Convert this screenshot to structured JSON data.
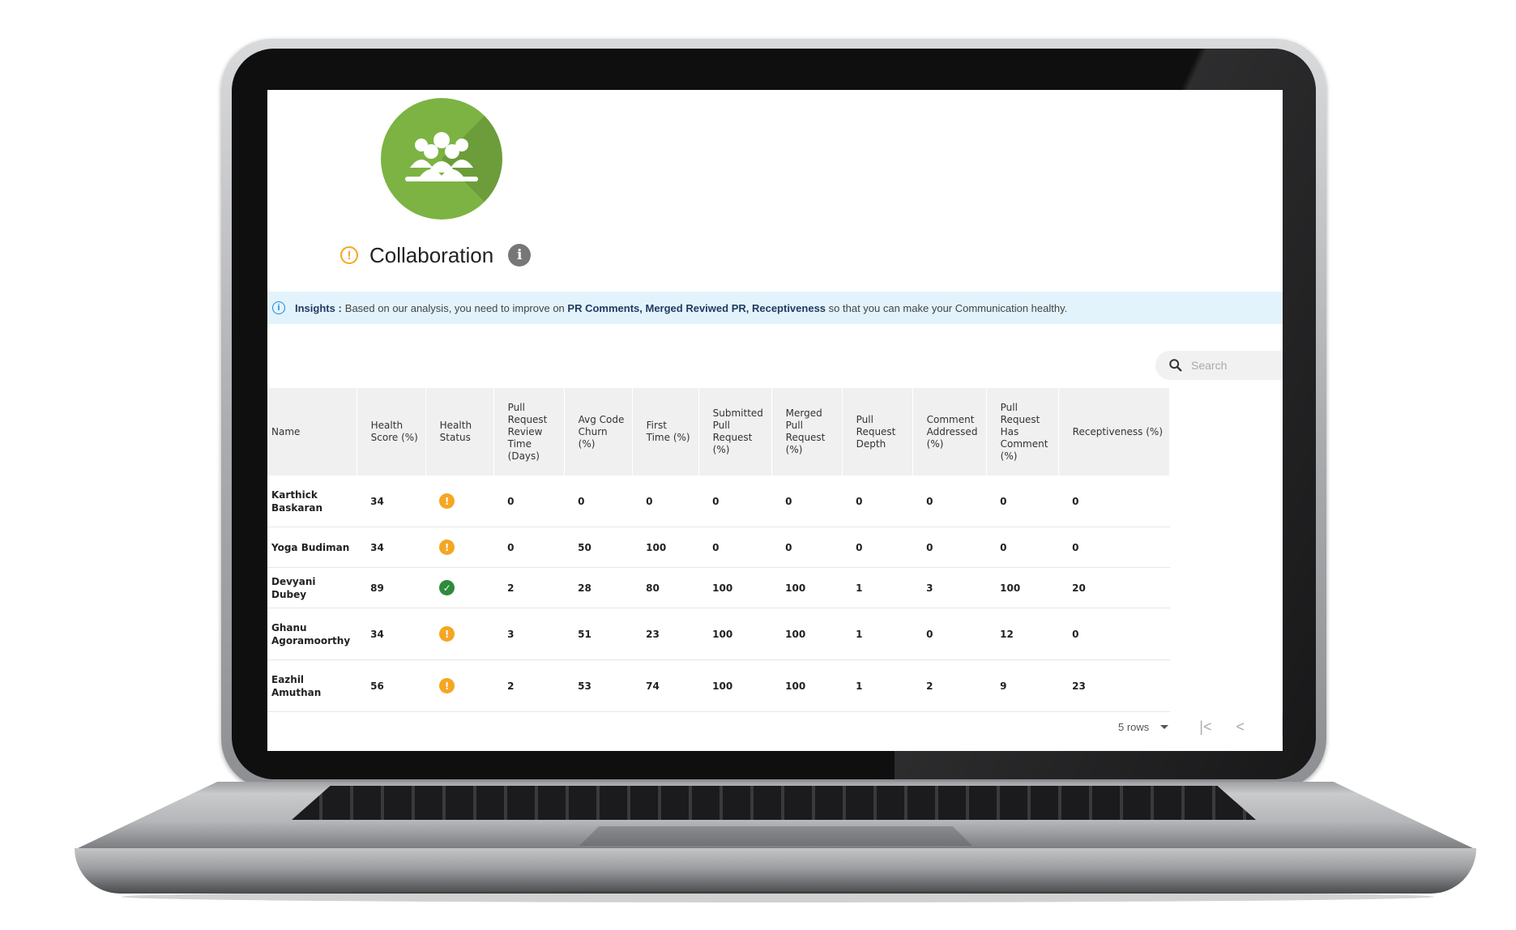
{
  "section": {
    "title": "Collaboration"
  },
  "insights": {
    "label": "Insights :",
    "text_before": "Based on our analysis, you need to improve on",
    "highlight": "PR Comments, Merged Reviwed PR, Receptiveness",
    "text_after": "so that you can make your Communication healthy."
  },
  "search": {
    "placeholder": "Search"
  },
  "table": {
    "columns": [
      "Name",
      "Health Score (%)",
      "Health Status",
      "Pull Request Review Time (Days)",
      "Avg Code Churn (%)",
      "First Time (%)",
      "Submitted Pull Request (%)",
      "Merged Pull Request (%)",
      "Pull Request Depth",
      "Comment Addressed (%)",
      "Pull Request Has Comment (%)",
      "Receptiveness (%)"
    ],
    "rows": [
      {
        "name": "Karthick Baskaran",
        "health_score": "34",
        "status": "warning",
        "review_time": "0",
        "code_churn": "0",
        "first_time": "0",
        "submitted": "0",
        "merged": "0",
        "depth": "0",
        "comment_addressed": "0",
        "has_comment": "0",
        "receptiveness": "0"
      },
      {
        "name": "Yoga Budiman",
        "health_score": "34",
        "status": "warning",
        "review_time": "0",
        "code_churn": "50",
        "first_time": "100",
        "submitted": "0",
        "merged": "0",
        "depth": "0",
        "comment_addressed": "0",
        "has_comment": "0",
        "receptiveness": "0"
      },
      {
        "name": "Devyani Dubey",
        "health_score": "89",
        "status": "healthy",
        "review_time": "2",
        "code_churn": "28",
        "first_time": "80",
        "submitted": "100",
        "merged": "100",
        "depth": "1",
        "comment_addressed": "3",
        "has_comment": "100",
        "receptiveness": "20"
      },
      {
        "name": "Ghanu Agoramoorthy",
        "health_score": "34",
        "status": "warning",
        "review_time": "3",
        "code_churn": "51",
        "first_time": "23",
        "submitted": "100",
        "merged": "100",
        "depth": "1",
        "comment_addressed": "0",
        "has_comment": "12",
        "receptiveness": "0"
      },
      {
        "name": "Eazhil Amuthan",
        "health_score": "56",
        "status": "warning",
        "review_time": "2",
        "code_churn": "53",
        "first_time": "74",
        "submitted": "100",
        "merged": "100",
        "depth": "1",
        "comment_addressed": "2",
        "has_comment": "9",
        "receptiveness": "23"
      }
    ]
  },
  "pagination": {
    "rows_label": "5 rows",
    "first_icon": "first-page-icon",
    "prev_icon": "prev-page-icon"
  },
  "colors": {
    "accent_green": "#7cb342",
    "warning": "#f5a623",
    "healthy": "#2e8b3a",
    "insight_bg": "#e3f3fb"
  }
}
